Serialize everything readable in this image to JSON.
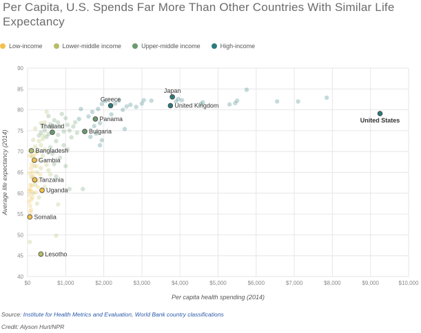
{
  "colors": {
    "low": "#f2c14e",
    "lower_middle": "#b5bd68",
    "upper_middle": "#6b9a6e",
    "high": "#2d7a7b",
    "grid": "#e6e6e6"
  },
  "chart_data": {
    "type": "scatter",
    "title": "Per Capita, U.S. Spends Far More Than Other Countries With Similar Life Expectancy",
    "xlabel": "Per capita health spending (2014)",
    "ylabel": "Average life expectancy (2014)",
    "xlim": [
      0,
      10000
    ],
    "ylim": [
      40,
      90
    ],
    "x_ticks": [
      0,
      1000,
      2000,
      3000,
      4000,
      5000,
      6000,
      7000,
      8000,
      9000,
      10000
    ],
    "x_tick_labels": [
      "$0",
      "$1,000",
      "$2,000",
      "$3,000",
      "$4,000",
      "$5,000",
      "$6,000",
      "$7,000",
      "$8,000",
      "$9,000",
      "$10,000"
    ],
    "y_ticks": [
      40,
      45,
      50,
      55,
      60,
      65,
      70,
      75,
      80,
      85,
      90
    ],
    "y_tick_labels": [
      "40",
      "45",
      "50",
      "55",
      "60",
      "65",
      "70",
      "75",
      "80",
      "85",
      "90"
    ],
    "legend": [
      {
        "key": "low",
        "label": "Low-income"
      },
      {
        "key": "lower_middle",
        "label": "Lower-middle income"
      },
      {
        "key": "upper_middle",
        "label": "Upper-middle income"
      },
      {
        "key": "high",
        "label": "High-income"
      }
    ],
    "highlighted": [
      {
        "name": "Japan",
        "x": 3800,
        "y": 83.1,
        "group": "high",
        "anchor": "above",
        "bold": false
      },
      {
        "name": "United Kingdom",
        "x": 3750,
        "y": 81.0,
        "group": "high",
        "anchor": "right",
        "bold": false
      },
      {
        "name": "Greece",
        "x": 2180,
        "y": 81.0,
        "group": "high",
        "anchor": "above",
        "bold": false
      },
      {
        "name": "United States",
        "x": 9250,
        "y": 79.1,
        "group": "high",
        "anchor": "below",
        "bold": true
      },
      {
        "name": "Panama",
        "x": 1780,
        "y": 77.8,
        "group": "upper_middle",
        "anchor": "right",
        "bold": false
      },
      {
        "name": "Thailand",
        "x": 650,
        "y": 74.6,
        "group": "upper_middle",
        "anchor": "above",
        "bold": false
      },
      {
        "name": "Bulgaria",
        "x": 1500,
        "y": 74.8,
        "group": "upper_middle",
        "anchor": "right",
        "bold": false
      },
      {
        "name": "Bangladesh",
        "x": 100,
        "y": 70.2,
        "group": "lower_middle",
        "anchor": "right",
        "bold": false
      },
      {
        "name": "Gambia",
        "x": 180,
        "y": 67.9,
        "group": "low",
        "anchor": "right",
        "bold": false
      },
      {
        "name": "Tanzania",
        "x": 190,
        "y": 63.2,
        "group": "low",
        "anchor": "right",
        "bold": false
      },
      {
        "name": "Uganda",
        "x": 380,
        "y": 60.7,
        "group": "low",
        "anchor": "right",
        "bold": false
      },
      {
        "name": "Somalia",
        "x": 60,
        "y": 54.3,
        "group": "low",
        "anchor": "right",
        "bold": false
      },
      {
        "name": "Lesotho",
        "x": 350,
        "y": 45.4,
        "group": "lower_middle",
        "anchor": "right",
        "bold": false
      }
    ],
    "background_points": [
      {
        "x": 5750,
        "y": 84.8,
        "group": "high"
      },
      {
        "x": 7850,
        "y": 82.9,
        "group": "high"
      },
      {
        "x": 7100,
        "y": 82.0,
        "group": "high"
      },
      {
        "x": 6550,
        "y": 82.0,
        "group": "high"
      },
      {
        "x": 5500,
        "y": 82.2,
        "group": "high"
      },
      {
        "x": 5450,
        "y": 81.6,
        "group": "high"
      },
      {
        "x": 5300,
        "y": 81.3,
        "group": "high"
      },
      {
        "x": 4600,
        "y": 81.8,
        "group": "high"
      },
      {
        "x": 4550,
        "y": 81.4,
        "group": "high"
      },
      {
        "x": 4050,
        "y": 82.3,
        "group": "high"
      },
      {
        "x": 3950,
        "y": 82.6,
        "group": "high"
      },
      {
        "x": 3900,
        "y": 82.0,
        "group": "high"
      },
      {
        "x": 3250,
        "y": 82.2,
        "group": "high"
      },
      {
        "x": 3050,
        "y": 82.3,
        "group": "high"
      },
      {
        "x": 3000,
        "y": 81.5,
        "group": "high"
      },
      {
        "x": 2850,
        "y": 80.7,
        "group": "high"
      },
      {
        "x": 2700,
        "y": 81.2,
        "group": "high"
      },
      {
        "x": 2600,
        "y": 80.8,
        "group": "high"
      },
      {
        "x": 2400,
        "y": 82.2,
        "group": "high"
      },
      {
        "x": 2300,
        "y": 81.5,
        "group": "high"
      },
      {
        "x": 2050,
        "y": 82.1,
        "group": "high"
      },
      {
        "x": 1950,
        "y": 81.4,
        "group": "high"
      },
      {
        "x": 1850,
        "y": 80.2,
        "group": "high"
      },
      {
        "x": 1700,
        "y": 79.5,
        "group": "high"
      },
      {
        "x": 1600,
        "y": 78.4,
        "group": "high"
      },
      {
        "x": 1350,
        "y": 77.8,
        "group": "high"
      },
      {
        "x": 2500,
        "y": 80.0,
        "group": "high"
      },
      {
        "x": 2200,
        "y": 78.9,
        "group": "high"
      },
      {
        "x": 2550,
        "y": 75.4,
        "group": "high"
      },
      {
        "x": 1900,
        "y": 76.8,
        "group": "high"
      },
      {
        "x": 1750,
        "y": 76.1,
        "group": "high"
      },
      {
        "x": 1800,
        "y": 74.3,
        "group": "high"
      },
      {
        "x": 1650,
        "y": 73.5,
        "group": "high"
      },
      {
        "x": 1950,
        "y": 72.7,
        "group": "high"
      },
      {
        "x": 1900,
        "y": 71.5,
        "group": "high"
      },
      {
        "x": 1400,
        "y": 80.2,
        "group": "high"
      },
      {
        "x": 1450,
        "y": 61.0,
        "group": "upper_middle"
      },
      {
        "x": 1100,
        "y": 75.0,
        "group": "upper_middle"
      },
      {
        "x": 1000,
        "y": 78.0,
        "group": "upper_middle"
      },
      {
        "x": 1050,
        "y": 76.4,
        "group": "upper_middle"
      },
      {
        "x": 950,
        "y": 74.8,
        "group": "upper_middle"
      },
      {
        "x": 900,
        "y": 79.0,
        "group": "upper_middle"
      },
      {
        "x": 850,
        "y": 76.0,
        "group": "upper_middle"
      },
      {
        "x": 800,
        "y": 74.0,
        "group": "upper_middle"
      },
      {
        "x": 750,
        "y": 72.5,
        "group": "upper_middle"
      },
      {
        "x": 700,
        "y": 77.5,
        "group": "upper_middle"
      },
      {
        "x": 650,
        "y": 75.8,
        "group": "upper_middle"
      },
      {
        "x": 600,
        "y": 76.5,
        "group": "upper_middle"
      },
      {
        "x": 550,
        "y": 74.2,
        "group": "upper_middle"
      },
      {
        "x": 500,
        "y": 73.5,
        "group": "upper_middle"
      },
      {
        "x": 450,
        "y": 75.0,
        "group": "upper_middle"
      },
      {
        "x": 1150,
        "y": 73.4,
        "group": "upper_middle"
      },
      {
        "x": 1200,
        "y": 76.0,
        "group": "upper_middle"
      },
      {
        "x": 1250,
        "y": 77.0,
        "group": "upper_middle"
      },
      {
        "x": 1300,
        "y": 74.5,
        "group": "upper_middle"
      },
      {
        "x": 1050,
        "y": 70.5,
        "group": "upper_middle"
      },
      {
        "x": 950,
        "y": 71.5,
        "group": "upper_middle"
      },
      {
        "x": 1100,
        "y": 61.0,
        "group": "upper_middle"
      },
      {
        "x": 1000,
        "y": 66.5,
        "group": "upper_middle"
      },
      {
        "x": 850,
        "y": 68.5,
        "group": "upper_middle"
      },
      {
        "x": 750,
        "y": 64.0,
        "group": "upper_middle"
      },
      {
        "x": 700,
        "y": 67.0,
        "group": "upper_middle"
      },
      {
        "x": 400,
        "y": 76.0,
        "group": "upper_middle"
      },
      {
        "x": 350,
        "y": 74.5,
        "group": "upper_middle"
      },
      {
        "x": 300,
        "y": 73.8,
        "group": "upper_middle"
      },
      {
        "x": 600,
        "y": 71.0,
        "group": "upper_middle"
      },
      {
        "x": 650,
        "y": 69.5,
        "group": "upper_middle"
      },
      {
        "x": 800,
        "y": 77.0,
        "group": "upper_middle"
      },
      {
        "x": 550,
        "y": 78.5,
        "group": "upper_middle"
      },
      {
        "x": 500,
        "y": 79.5,
        "group": "lower_middle"
      },
      {
        "x": 450,
        "y": 77.0,
        "group": "lower_middle"
      },
      {
        "x": 400,
        "y": 73.0,
        "group": "lower_middle"
      },
      {
        "x": 350,
        "y": 71.5,
        "group": "lower_middle"
      },
      {
        "x": 300,
        "y": 72.5,
        "group": "lower_middle"
      },
      {
        "x": 250,
        "y": 70.0,
        "group": "lower_middle"
      },
      {
        "x": 200,
        "y": 71.2,
        "group": "lower_middle"
      },
      {
        "x": 150,
        "y": 72.8,
        "group": "lower_middle"
      },
      {
        "x": 120,
        "y": 68.8,
        "group": "lower_middle"
      },
      {
        "x": 180,
        "y": 66.5,
        "group": "lower_middle"
      },
      {
        "x": 250,
        "y": 65.0,
        "group": "lower_middle"
      },
      {
        "x": 300,
        "y": 68.0,
        "group": "lower_middle"
      },
      {
        "x": 350,
        "y": 66.0,
        "group": "lower_middle"
      },
      {
        "x": 400,
        "y": 69.0,
        "group": "lower_middle"
      },
      {
        "x": 450,
        "y": 70.5,
        "group": "lower_middle"
      },
      {
        "x": 500,
        "y": 66.8,
        "group": "lower_middle"
      },
      {
        "x": 550,
        "y": 65.5,
        "group": "lower_middle"
      },
      {
        "x": 600,
        "y": 64.5,
        "group": "lower_middle"
      },
      {
        "x": 200,
        "y": 62.0,
        "group": "lower_middle"
      },
      {
        "x": 150,
        "y": 60.0,
        "group": "lower_middle"
      },
      {
        "x": 300,
        "y": 59.0,
        "group": "lower_middle"
      },
      {
        "x": 250,
        "y": 57.5,
        "group": "lower_middle"
      },
      {
        "x": 450,
        "y": 61.5,
        "group": "lower_middle"
      },
      {
        "x": 100,
        "y": 64.0,
        "group": "lower_middle"
      },
      {
        "x": 800,
        "y": 57.3,
        "group": "lower_middle"
      },
      {
        "x": 750,
        "y": 49.8,
        "group": "lower_middle"
      },
      {
        "x": 60,
        "y": 48.3,
        "group": "lower_middle"
      },
      {
        "x": 350,
        "y": 76.8,
        "group": "lower_middle"
      },
      {
        "x": 200,
        "y": 75.5,
        "group": "lower_middle"
      },
      {
        "x": 420,
        "y": 73.8,
        "group": "lower_middle"
      },
      {
        "x": 80,
        "y": 62.0,
        "group": "low"
      },
      {
        "x": 60,
        "y": 61.0,
        "group": "low"
      },
      {
        "x": 50,
        "y": 59.5,
        "group": "low"
      },
      {
        "x": 40,
        "y": 58.0,
        "group": "low"
      },
      {
        "x": 70,
        "y": 57.0,
        "group": "low"
      },
      {
        "x": 90,
        "y": 56.0,
        "group": "low"
      },
      {
        "x": 100,
        "y": 60.5,
        "group": "low"
      },
      {
        "x": 120,
        "y": 63.5,
        "group": "low"
      },
      {
        "x": 140,
        "y": 65.0,
        "group": "low"
      },
      {
        "x": 160,
        "y": 64.0,
        "group": "low"
      },
      {
        "x": 110,
        "y": 61.8,
        "group": "low"
      },
      {
        "x": 130,
        "y": 59.0,
        "group": "low"
      },
      {
        "x": 170,
        "y": 62.8,
        "group": "low"
      },
      {
        "x": 220,
        "y": 60.2,
        "group": "low"
      },
      {
        "x": 240,
        "y": 66.5,
        "group": "low"
      },
      {
        "x": 280,
        "y": 63.0,
        "group": "low"
      },
      {
        "x": 90,
        "y": 66.0,
        "group": "low"
      },
      {
        "x": 60,
        "y": 64.8,
        "group": "low"
      },
      {
        "x": 45,
        "y": 60.5,
        "group": "low"
      },
      {
        "x": 75,
        "y": 55.5,
        "group": "low"
      },
      {
        "x": 100,
        "y": 58.5,
        "group": "low"
      },
      {
        "x": 150,
        "y": 68.8,
        "group": "low"
      },
      {
        "x": 210,
        "y": 69.5,
        "group": "low"
      },
      {
        "x": 60,
        "y": 69.0,
        "group": "low"
      },
      {
        "x": 110,
        "y": 67.0,
        "group": "low"
      },
      {
        "x": 330,
        "y": 64.5,
        "group": "low"
      },
      {
        "x": 270,
        "y": 61.5,
        "group": "low"
      }
    ]
  },
  "source": {
    "prefix": "Source:",
    "link1": "Institute for Health Metrics and Evaluation",
    "sep": ",",
    "link2": "World Bank country classifications"
  },
  "credit": "Credit: Alyson Hurt/NPR"
}
